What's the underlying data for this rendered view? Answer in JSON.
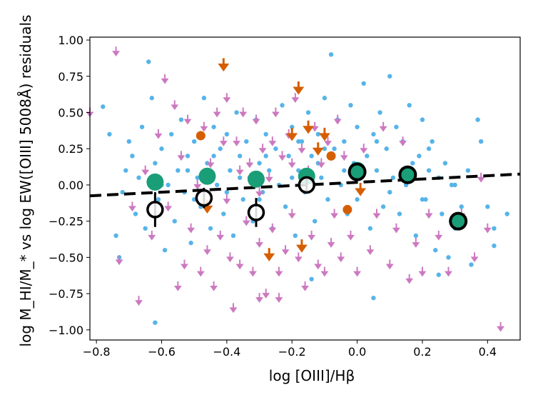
{
  "chart_data": {
    "type": "scatter",
    "xlabel": "log [OIII]/Hβ",
    "ylabel": "log M_HI/M_* vs log EW([OIII] 5008Å) residuals",
    "xlim": [
      -0.82,
      0.5
    ],
    "ylim": [
      -1.07,
      1.02
    ],
    "xticks": [
      -0.8,
      -0.6,
      -0.4,
      -0.2,
      0.0,
      0.2,
      0.4
    ],
    "xtick_labels": [
      "−0.8",
      "−0.6",
      "−0.4",
      "−0.2",
      "0.0",
      "0.2",
      "0.4"
    ],
    "yticks": [
      1.0,
      0.75,
      0.5,
      0.25,
      0.0,
      -0.25,
      -0.5,
      -0.75,
      -1.0
    ],
    "ytick_labels": [
      "1.00",
      "0.75",
      "0.50",
      "0.25",
      "0.00",
      "−0.25",
      "−0.50",
      "−0.75",
      "−1.00"
    ],
    "grid": false,
    "colors": {
      "detections": "#56b4e9",
      "upper_limits": "#cc79c0",
      "orange_limits": "#d55e00",
      "green_bins": "#1a9e77",
      "fit_line": "#000000"
    },
    "fit_line": {
      "x": [
        -0.82,
        0.5
      ],
      "y": [
        -0.075,
        0.075
      ]
    },
    "series": [
      {
        "marker": "dot",
        "values": [
          [
            -0.78,
            0.54
          ],
          [
            -0.76,
            0.35
          ],
          [
            -0.74,
            -0.35
          ],
          [
            -0.73,
            -0.5
          ],
          [
            -0.72,
            -0.05
          ],
          [
            -0.71,
            0.1
          ],
          [
            -0.7,
            0.3
          ],
          [
            -0.69,
            0.2
          ],
          [
            -0.68,
            -0.2
          ],
          [
            -0.67,
            0.05
          ],
          [
            -0.66,
            0.4
          ],
          [
            -0.65,
            -0.3
          ],
          [
            -0.64,
            0.85
          ],
          [
            -0.63,
            0.6
          ],
          [
            -0.62,
            0.15
          ],
          [
            -0.61,
            -0.1
          ],
          [
            -0.6,
            0.25
          ],
          [
            -0.59,
            -0.45
          ],
          [
            -0.58,
            0.0
          ],
          [
            -0.57,
            0.35
          ],
          [
            -0.56,
            -0.25
          ],
          [
            -0.55,
            0.1
          ],
          [
            -0.54,
            0.45
          ],
          [
            -0.53,
            -0.05
          ],
          [
            -0.52,
            0.2
          ],
          [
            -0.51,
            -0.4
          ],
          [
            -0.5,
            0.3
          ],
          [
            -0.49,
            0.05
          ],
          [
            -0.48,
            -0.15
          ],
          [
            -0.47,
            0.6
          ],
          [
            -0.46,
            0.15
          ],
          [
            -0.45,
            -0.3
          ],
          [
            -0.44,
            0.4
          ],
          [
            -0.43,
            0.0
          ],
          [
            -0.42,
            0.25
          ],
          [
            -0.41,
            -0.2
          ],
          [
            -0.4,
            0.35
          ],
          [
            -0.39,
            0.1
          ],
          [
            -0.38,
            -0.35
          ],
          [
            -0.37,
            0.5
          ],
          [
            -0.36,
            0.2
          ],
          [
            -0.35,
            -0.1
          ],
          [
            -0.34,
            0.3
          ],
          [
            -0.33,
            0.05
          ],
          [
            -0.32,
            -0.25
          ],
          [
            -0.31,
            0.45
          ],
          [
            -0.3,
            0.15
          ],
          [
            -0.29,
            -0.05
          ],
          [
            -0.28,
            0.35
          ],
          [
            -0.27,
            0.1
          ],
          [
            -0.26,
            -0.3
          ],
          [
            -0.25,
            0.25
          ],
          [
            -0.24,
            0.0
          ],
          [
            -0.23,
            0.55
          ],
          [
            -0.22,
            -0.15
          ],
          [
            -0.21,
            0.2
          ],
          [
            -0.2,
            0.4
          ],
          [
            -0.19,
            -0.35
          ],
          [
            -0.18,
            0.1
          ],
          [
            -0.17,
            0.3
          ],
          [
            -0.16,
            -0.05
          ],
          [
            -0.15,
            0.5
          ],
          [
            -0.14,
            0.2
          ],
          [
            -0.13,
            -0.25
          ],
          [
            -0.12,
            0.35
          ],
          [
            -0.11,
            0.05
          ],
          [
            -0.1,
            0.6
          ],
          [
            -0.09,
            -0.1
          ],
          [
            -0.08,
            0.9
          ],
          [
            -0.07,
            0.25
          ],
          [
            -0.06,
            0.45
          ],
          [
            -0.05,
            0.0
          ],
          [
            -0.04,
            0.3
          ],
          [
            -0.03,
            -0.2
          ],
          [
            -0.02,
            0.55
          ],
          [
            -0.01,
            0.15
          ],
          [
            0.0,
            0.4
          ],
          [
            0.01,
            -0.05
          ],
          [
            0.02,
            0.7
          ],
          [
            0.03,
            0.2
          ],
          [
            0.04,
            -0.3
          ],
          [
            0.05,
            0.35
          ],
          [
            0.06,
            0.1
          ],
          [
            0.07,
            0.5
          ],
          [
            0.08,
            -0.15
          ],
          [
            0.09,
            0.25
          ],
          [
            0.1,
            0.75
          ],
          [
            0.11,
            0.05
          ],
          [
            0.12,
            0.4
          ],
          [
            0.13,
            -0.2
          ],
          [
            0.14,
            0.3
          ],
          [
            0.15,
            0.0
          ],
          [
            0.16,
            0.55
          ],
          [
            0.17,
            0.15
          ],
          [
            0.18,
            -0.35
          ],
          [
            0.19,
            0.2
          ],
          [
            0.2,
            0.45
          ],
          [
            0.21,
            -0.1
          ],
          [
            0.22,
            0.1
          ],
          [
            0.23,
            0.3
          ],
          [
            0.24,
            -0.45
          ],
          [
            0.25,
            0.05
          ],
          [
            0.26,
            -0.2
          ],
          [
            0.27,
            0.15
          ],
          [
            0.28,
            -0.5
          ],
          [
            0.29,
            0.0
          ],
          [
            0.3,
            -0.3
          ],
          [
            0.32,
            -0.15
          ],
          [
            0.34,
            0.1
          ],
          [
            0.35,
            -0.55
          ],
          [
            0.37,
            0.45
          ],
          [
            0.38,
            0.3
          ],
          [
            0.4,
            -0.15
          ],
          [
            0.42,
            -0.3
          ],
          [
            0.46,
            -0.2
          ],
          [
            -0.52,
            0.1
          ],
          [
            -0.44,
            0.2
          ],
          [
            -0.36,
            0.05
          ],
          [
            -0.28,
            0.2
          ],
          [
            -0.18,
            0.3
          ],
          [
            -0.12,
            0.15
          ],
          [
            -0.04,
            0.1
          ],
          [
            0.06,
            0.3
          ],
          [
            0.14,
            0.1
          ],
          [
            0.22,
            0.25
          ],
          [
            -0.6,
            0.0
          ],
          [
            -0.5,
            -0.1
          ],
          [
            -0.4,
            -0.05
          ],
          [
            -0.3,
            -0.1
          ],
          [
            -0.2,
            0.05
          ],
          [
            -0.1,
            0.25
          ],
          [
            0.0,
            -0.1
          ],
          [
            0.1,
            -0.05
          ],
          [
            0.2,
            -0.1
          ],
          [
            0.3,
            0.0
          ],
          [
            -0.62,
            -0.95
          ],
          [
            0.42,
            -0.42
          ],
          [
            0.25,
            -0.62
          ],
          [
            0.05,
            -0.78
          ],
          [
            -0.14,
            -0.65
          ]
        ]
      },
      {
        "marker": "down-arrow",
        "values": [
          [
            -0.82,
            0.5
          ],
          [
            -0.74,
            0.92
          ],
          [
            -0.73,
            -0.52
          ],
          [
            -0.69,
            -0.15
          ],
          [
            -0.67,
            -0.8
          ],
          [
            -0.65,
            0.1
          ],
          [
            -0.63,
            -0.35
          ],
          [
            -0.61,
            0.35
          ],
          [
            -0.59,
            0.73
          ],
          [
            -0.58,
            -0.15
          ],
          [
            -0.56,
            0.55
          ],
          [
            -0.55,
            -0.7
          ],
          [
            -0.54,
            0.2
          ],
          [
            -0.53,
            -0.55
          ],
          [
            -0.52,
            0.45
          ],
          [
            -0.51,
            -0.3
          ],
          [
            -0.49,
            0.0
          ],
          [
            -0.48,
            -0.6
          ],
          [
            -0.47,
            0.4
          ],
          [
            -0.46,
            -0.45
          ],
          [
            -0.45,
            0.15
          ],
          [
            -0.44,
            -0.7
          ],
          [
            -0.43,
            0.5
          ],
          [
            -0.42,
            -0.35
          ],
          [
            -0.41,
            0.3
          ],
          [
            -0.4,
            0.6
          ],
          [
            -0.39,
            -0.5
          ],
          [
            -0.38,
            -0.85
          ],
          [
            -0.37,
            0.3
          ],
          [
            -0.36,
            -0.55
          ],
          [
            -0.35,
            0.5
          ],
          [
            -0.34,
            -0.25
          ],
          [
            -0.33,
            0.15
          ],
          [
            -0.32,
            -0.6
          ],
          [
            -0.31,
            0.45
          ],
          [
            -0.3,
            -0.4
          ],
          [
            -0.29,
            0.25
          ],
          [
            -0.28,
            -0.75
          ],
          [
            -0.27,
            0.05
          ],
          [
            -0.26,
            -0.3
          ],
          [
            -0.25,
            0.5
          ],
          [
            -0.24,
            -0.6
          ],
          [
            -0.23,
            0.2
          ],
          [
            -0.22,
            -0.45
          ],
          [
            -0.21,
            0.35
          ],
          [
            -0.2,
            -0.2
          ],
          [
            -0.19,
            0.6
          ],
          [
            -0.18,
            -0.5
          ],
          [
            -0.17,
            0.25
          ],
          [
            -0.16,
            -0.7
          ],
          [
            -0.15,
            0.1
          ],
          [
            -0.14,
            -0.35
          ],
          [
            -0.13,
            0.4
          ],
          [
            -0.12,
            -0.55
          ],
          [
            -0.11,
            0.15
          ],
          [
            -0.1,
            -0.6
          ],
          [
            -0.09,
            0.3
          ],
          [
            -0.08,
            -0.4
          ],
          [
            -0.07,
            -0.2
          ],
          [
            -0.06,
            0.45
          ],
          [
            -0.05,
            -0.5
          ],
          [
            -0.04,
            0.2
          ],
          [
            -0.02,
            -0.35
          ],
          [
            0.0,
            -0.6
          ],
          [
            0.02,
            0.25
          ],
          [
            0.04,
            -0.45
          ],
          [
            0.06,
            -0.2
          ],
          [
            0.08,
            0.4
          ],
          [
            0.1,
            -0.55
          ],
          [
            0.12,
            -0.3
          ],
          [
            0.14,
            0.3
          ],
          [
            0.16,
            -0.65
          ],
          [
            0.18,
            -0.4
          ],
          [
            0.2,
            -0.6
          ],
          [
            0.22,
            -0.2
          ],
          [
            0.25,
            -0.35
          ],
          [
            0.28,
            -0.6
          ],
          [
            0.32,
            -0.2
          ],
          [
            0.36,
            -0.5
          ],
          [
            0.38,
            0.05
          ],
          [
            0.4,
            -0.3
          ],
          [
            0.44,
            -0.98
          ],
          [
            -0.4,
            -0.1
          ],
          [
            -0.36,
            0.1
          ],
          [
            -0.3,
            -0.05
          ],
          [
            -0.26,
            0.3
          ],
          [
            -0.2,
            0.15
          ],
          [
            -0.14,
            0.05
          ],
          [
            -0.3,
            -0.78
          ],
          [
            -0.24,
            -0.78
          ]
        ]
      },
      {
        "marker": "orange-arrow",
        "values": [
          [
            -0.41,
            0.83
          ],
          [
            -0.18,
            0.67
          ],
          [
            -0.15,
            0.4
          ],
          [
            -0.2,
            0.35
          ],
          [
            -0.12,
            0.25
          ],
          [
            -0.1,
            0.35
          ],
          [
            -0.46,
            -0.15
          ],
          [
            -0.27,
            -0.48
          ],
          [
            -0.17,
            -0.42
          ],
          [
            0.01,
            -0.03
          ]
        ]
      },
      {
        "marker": "orange-dot",
        "values": [
          [
            -0.48,
            0.34
          ],
          [
            -0.45,
            0.06
          ],
          [
            -0.08,
            0.2
          ],
          [
            -0.03,
            -0.17
          ]
        ]
      },
      {
        "marker": "green-dot",
        "values": [
          [
            -0.62,
            0.02
          ],
          [
            -0.46,
            0.06
          ],
          [
            -0.31,
            0.04
          ],
          [
            -0.155,
            0.06
          ],
          [
            0.0,
            0.1
          ],
          [
            0.155,
            0.075
          ]
        ]
      },
      {
        "marker": "green-ringed",
        "values": [
          [
            0.0,
            0.09
          ],
          [
            0.155,
            0.07
          ],
          [
            0.31,
            -0.25
          ]
        ]
      },
      {
        "marker": "open-circle",
        "values": [
          [
            -0.62,
            -0.17
          ],
          [
            -0.47,
            -0.09
          ],
          [
            -0.31,
            -0.19
          ],
          [
            -0.155,
            0.0
          ]
        ],
        "errors": [
          0.12,
          0.07,
          0.1,
          0.04
        ]
      }
    ]
  }
}
